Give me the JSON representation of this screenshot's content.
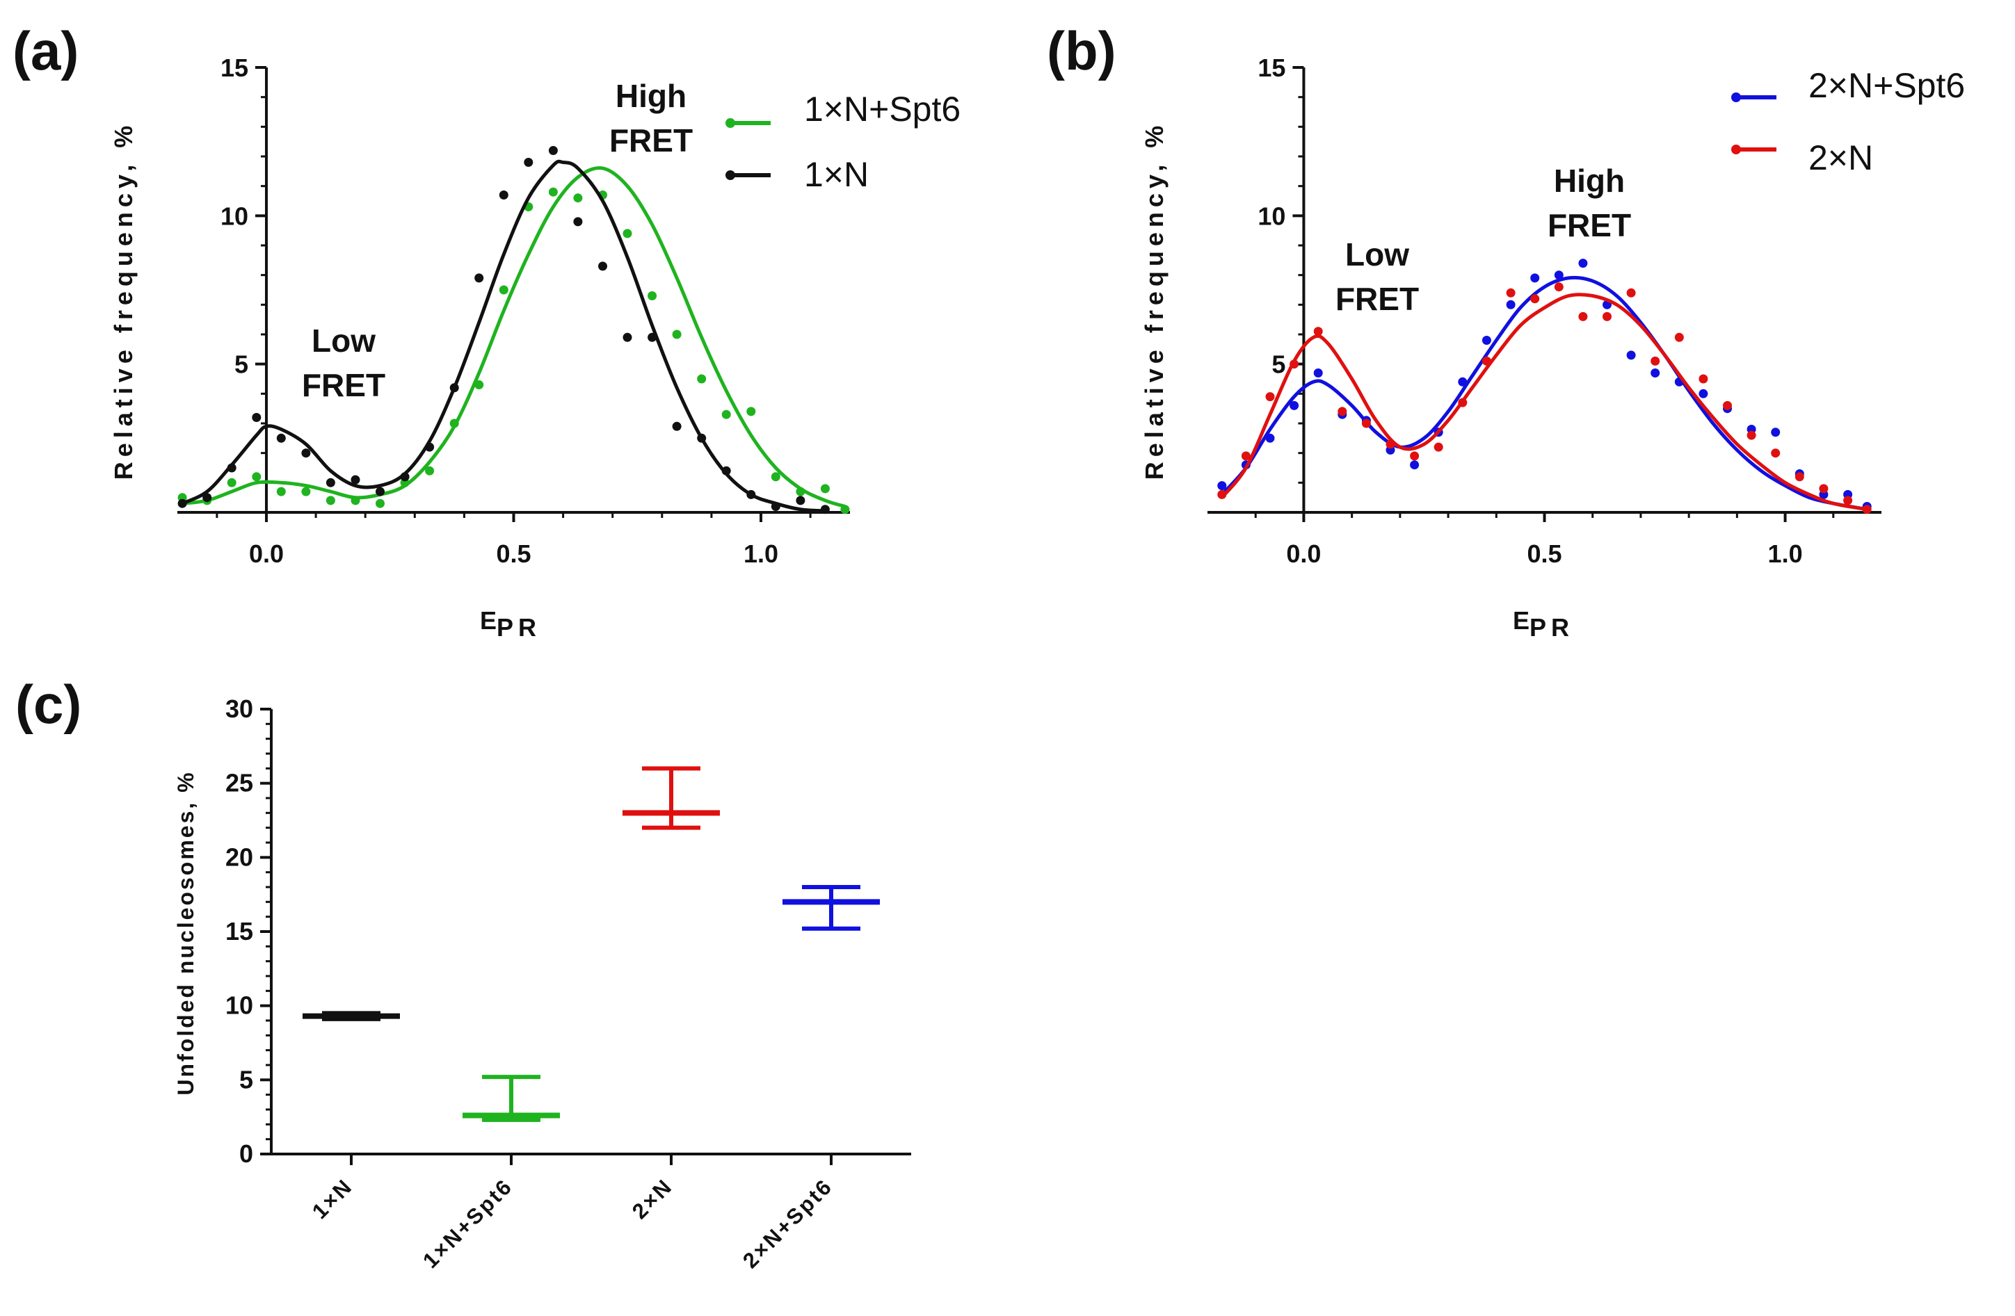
{
  "figure": {
    "labels": {
      "a": "(a)",
      "b": "(b)",
      "c": "(c)"
    }
  },
  "chart_data": [
    {
      "panel": "(a)",
      "type": "scatter",
      "title": "",
      "xlabel": "E",
      "xlabel_sub": "PR",
      "ylabel": "Relative frequency, %",
      "xlim": [
        -0.18,
        1.18
      ],
      "ylim": [
        0,
        15
      ],
      "xticks": [
        0.0,
        0.5,
        1.0
      ],
      "xtick_labels": [
        "0.0",
        "0.5",
        "1.0"
      ],
      "yticks": [
        5,
        10,
        15
      ],
      "ytick_labels": [
        "5",
        "10",
        "15"
      ],
      "legend_position": "top-right",
      "annotations": [
        {
          "text": [
            "Low",
            "FRET"
          ],
          "at": [
            0.15,
            5.0
          ]
        },
        {
          "text": [
            "High",
            "FRET"
          ],
          "at": [
            0.78,
            13.1
          ]
        }
      ],
      "series": [
        {
          "name": "1×N+Spt6",
          "color": "#1fb31f",
          "x": [
            -0.17,
            -0.12,
            -0.07,
            -0.02,
            0.03,
            0.08,
            0.13,
            0.18,
            0.23,
            0.28,
            0.33,
            0.38,
            0.43,
            0.48,
            0.53,
            0.58,
            0.63,
            0.68,
            0.73,
            0.78,
            0.83,
            0.88,
            0.93,
            0.98,
            1.03,
            1.08,
            1.13,
            1.17
          ],
          "y": [
            0.5,
            0.4,
            1.0,
            1.2,
            0.7,
            0.7,
            0.4,
            0.4,
            0.3,
            1.0,
            1.4,
            3.0,
            4.3,
            7.5,
            10.3,
            10.8,
            10.6,
            10.7,
            9.4,
            7.3,
            6.0,
            4.5,
            3.3,
            3.4,
            1.2,
            0.7,
            0.8,
            0.1
          ],
          "fit": [
            [
              -0.17,
              0.3
            ],
            [
              -0.12,
              0.4
            ],
            [
              -0.07,
              0.7
            ],
            [
              -0.02,
              1.0
            ],
            [
              0.03,
              1.0
            ],
            [
              0.08,
              0.9
            ],
            [
              0.13,
              0.7
            ],
            [
              0.18,
              0.5
            ],
            [
              0.23,
              0.6
            ],
            [
              0.28,
              0.9
            ],
            [
              0.33,
              1.7
            ],
            [
              0.38,
              2.9
            ],
            [
              0.43,
              4.7
            ],
            [
              0.48,
              6.8
            ],
            [
              0.53,
              8.7
            ],
            [
              0.58,
              10.3
            ],
            [
              0.63,
              11.3
            ],
            [
              0.68,
              11.6
            ],
            [
              0.73,
              11.0
            ],
            [
              0.78,
              9.7
            ],
            [
              0.83,
              7.9
            ],
            [
              0.88,
              5.9
            ],
            [
              0.93,
              4.1
            ],
            [
              0.98,
              2.6
            ],
            [
              1.03,
              1.5
            ],
            [
              1.08,
              0.8
            ],
            [
              1.13,
              0.4
            ],
            [
              1.17,
              0.2
            ]
          ]
        },
        {
          "name": "1×N",
          "color": "#111111",
          "x": [
            -0.17,
            -0.12,
            -0.07,
            -0.02,
            0.03,
            0.08,
            0.13,
            0.18,
            0.23,
            0.28,
            0.33,
            0.38,
            0.43,
            0.48,
            0.53,
            0.58,
            0.63,
            0.68,
            0.73,
            0.78,
            0.83,
            0.88,
            0.93,
            0.98,
            1.03,
            1.08,
            1.13
          ],
          "y": [
            0.3,
            0.5,
            1.5,
            3.2,
            2.5,
            2.0,
            1.0,
            1.1,
            0.7,
            1.2,
            2.2,
            4.2,
            7.9,
            10.7,
            11.8,
            12.2,
            9.8,
            8.3,
            5.9,
            5.9,
            2.9,
            2.5,
            1.4,
            0.6,
            0.2,
            0.4,
            0.1
          ],
          "fit": [
            [
              -0.17,
              0.3
            ],
            [
              -0.12,
              0.7
            ],
            [
              -0.07,
              1.6
            ],
            [
              -0.02,
              2.6
            ],
            [
              0.0,
              2.9
            ],
            [
              0.03,
              2.8
            ],
            [
              0.08,
              2.3
            ],
            [
              0.13,
              1.4
            ],
            [
              0.18,
              0.9
            ],
            [
              0.23,
              0.9
            ],
            [
              0.28,
              1.3
            ],
            [
              0.33,
              2.4
            ],
            [
              0.38,
              4.2
            ],
            [
              0.43,
              6.4
            ],
            [
              0.48,
              8.7
            ],
            [
              0.53,
              10.6
            ],
            [
              0.58,
              11.7
            ],
            [
              0.6,
              11.8
            ],
            [
              0.63,
              11.6
            ],
            [
              0.68,
              10.5
            ],
            [
              0.73,
              8.6
            ],
            [
              0.78,
              6.3
            ],
            [
              0.83,
              4.2
            ],
            [
              0.88,
              2.5
            ],
            [
              0.93,
              1.3
            ],
            [
              0.98,
              0.6
            ],
            [
              1.03,
              0.3
            ],
            [
              1.08,
              0.1
            ],
            [
              1.13,
              0.05
            ]
          ]
        }
      ]
    },
    {
      "panel": "(b)",
      "type": "scatter",
      "title": "",
      "xlabel": "E",
      "xlabel_sub": "PR",
      "ylabel": "Relative frequency, %",
      "xlim": [
        -0.2,
        1.2
      ],
      "ylim": [
        0,
        15
      ],
      "xticks": [
        0.0,
        0.5,
        1.0
      ],
      "xtick_labels": [
        "0.0",
        "0.5",
        "1.0"
      ],
      "yticks": [
        5,
        10,
        15
      ],
      "ytick_labels": [
        "5",
        "10",
        "15"
      ],
      "legend_position": "top-right",
      "annotations": [
        {
          "text": [
            "Low",
            "FRET"
          ],
          "at": [
            0.15,
            7.5
          ]
        },
        {
          "text": [
            "High",
            "FRET"
          ],
          "at": [
            0.6,
            10.0
          ]
        }
      ],
      "series": [
        {
          "name": "2×N+Spt6",
          "color": "#1010e0",
          "x": [
            -0.17,
            -0.12,
            -0.07,
            -0.02,
            0.03,
            0.08,
            0.13,
            0.18,
            0.23,
            0.28,
            0.33,
            0.38,
            0.43,
            0.48,
            0.53,
            0.58,
            0.63,
            0.68,
            0.73,
            0.78,
            0.83,
            0.88,
            0.93,
            0.98,
            1.03,
            1.08,
            1.13,
            1.17
          ],
          "y": [
            0.9,
            1.6,
            2.5,
            3.6,
            4.7,
            3.3,
            3.1,
            2.1,
            1.6,
            2.7,
            4.4,
            5.8,
            7.0,
            7.9,
            8.0,
            8.4,
            7.0,
            5.3,
            4.7,
            4.4,
            4.0,
            3.5,
            2.8,
            2.7,
            1.3,
            0.6,
            0.6,
            0.2
          ],
          "fit": [
            [
              -0.17,
              0.6
            ],
            [
              -0.12,
              1.5
            ],
            [
              -0.07,
              2.8
            ],
            [
              -0.02,
              3.9
            ],
            [
              0.02,
              4.4
            ],
            [
              0.05,
              4.3
            ],
            [
              0.1,
              3.6
            ],
            [
              0.15,
              2.7
            ],
            [
              0.2,
              2.2
            ],
            [
              0.25,
              2.5
            ],
            [
              0.3,
              3.4
            ],
            [
              0.35,
              4.6
            ],
            [
              0.4,
              5.8
            ],
            [
              0.45,
              6.9
            ],
            [
              0.5,
              7.6
            ],
            [
              0.55,
              7.9
            ],
            [
              0.6,
              7.8
            ],
            [
              0.65,
              7.3
            ],
            [
              0.7,
              6.4
            ],
            [
              0.75,
              5.3
            ],
            [
              0.8,
              4.1
            ],
            [
              0.85,
              3.0
            ],
            [
              0.9,
              2.1
            ],
            [
              0.95,
              1.4
            ],
            [
              1.0,
              0.9
            ],
            [
              1.05,
              0.5
            ],
            [
              1.1,
              0.3
            ],
            [
              1.17,
              0.1
            ]
          ]
        },
        {
          "name": "2×N",
          "color": "#e01010",
          "x": [
            -0.17,
            -0.12,
            -0.07,
            -0.02,
            0.03,
            0.08,
            0.13,
            0.18,
            0.23,
            0.28,
            0.33,
            0.38,
            0.43,
            0.48,
            0.53,
            0.58,
            0.63,
            0.68,
            0.73,
            0.78,
            0.83,
            0.88,
            0.93,
            0.98,
            1.03,
            1.08,
            1.13,
            1.17
          ],
          "y": [
            0.6,
            1.9,
            3.9,
            5.0,
            6.1,
            3.4,
            3.0,
            2.3,
            1.9,
            2.2,
            3.7,
            5.1,
            7.4,
            7.2,
            7.6,
            6.6,
            6.6,
            7.4,
            5.1,
            5.9,
            4.5,
            3.6,
            2.6,
            2.0,
            1.2,
            0.8,
            0.4,
            0.1
          ],
          "fit": [
            [
              -0.17,
              0.5
            ],
            [
              -0.12,
              1.5
            ],
            [
              -0.07,
              3.3
            ],
            [
              -0.02,
              5.1
            ],
            [
              0.02,
              5.9
            ],
            [
              0.05,
              5.7
            ],
            [
              0.1,
              4.5
            ],
            [
              0.15,
              3.1
            ],
            [
              0.2,
              2.2
            ],
            [
              0.25,
              2.3
            ],
            [
              0.3,
              3.1
            ],
            [
              0.35,
              4.2
            ],
            [
              0.4,
              5.3
            ],
            [
              0.45,
              6.3
            ],
            [
              0.5,
              6.9
            ],
            [
              0.55,
              7.3
            ],
            [
              0.6,
              7.3
            ],
            [
              0.65,
              7.0
            ],
            [
              0.7,
              6.3
            ],
            [
              0.75,
              5.3
            ],
            [
              0.8,
              4.2
            ],
            [
              0.85,
              3.2
            ],
            [
              0.9,
              2.3
            ],
            [
              0.95,
              1.6
            ],
            [
              1.0,
              1.0
            ],
            [
              1.05,
              0.6
            ],
            [
              1.1,
              0.3
            ],
            [
              1.17,
              0.1
            ]
          ]
        }
      ]
    },
    {
      "panel": "(c)",
      "type": "scatter",
      "title": "",
      "xlabel": "",
      "ylabel": "Unfolded nucleosomes, %",
      "ylim": [
        0,
        30
      ],
      "yticks": [
        0,
        5,
        10,
        15,
        20,
        25,
        30
      ],
      "ytick_labels": [
        "0",
        "5",
        "10",
        "15",
        "20",
        "25",
        "30"
      ],
      "categories": [
        "1×N",
        "1×N+Spt6",
        "2×N",
        "2×N+Spt6"
      ],
      "series": [
        {
          "name": "1×N",
          "color": "#111111",
          "mean": 9.3,
          "low": 9.1,
          "high": 9.5
        },
        {
          "name": "1×N+Spt6",
          "color": "#1fb31f",
          "mean": 2.6,
          "low": 2.3,
          "high": 5.2
        },
        {
          "name": "2×N",
          "color": "#e01010",
          "mean": 23.0,
          "low": 22.0,
          "high": 26.0
        },
        {
          "name": "2×N+Spt6",
          "color": "#1010e0",
          "mean": 17.0,
          "low": 15.2,
          "high": 18.0
        }
      ]
    }
  ]
}
